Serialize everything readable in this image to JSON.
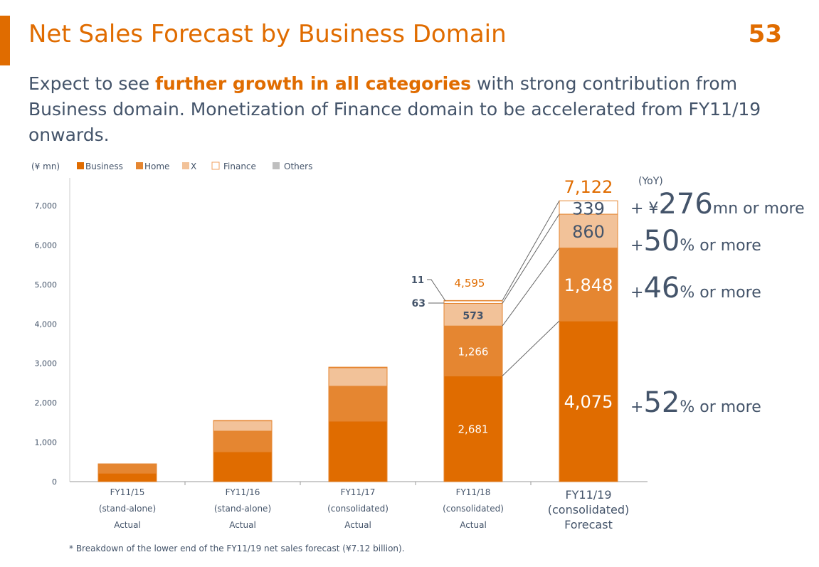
{
  "header": {
    "title": "Net Sales Forecast by Business Domain",
    "page_number": "53"
  },
  "subtitle": {
    "pre": "Expect to see ",
    "highlight": "further growth in all categories",
    "post": " with strong contribution from Business domain. Monetization of Finance domain to be accelerated from FY11/19 onwards."
  },
  "footnote": "* Breakdown of the lower end of the FY11/19 net sales forecast (¥7.12 billion).",
  "colors": {
    "Business": "#e06c00",
    "Home": "#e58631",
    "X": "#f2c299",
    "Finance": "#ffffff",
    "Others": "#bfbfbf",
    "accent": "#e06c00",
    "text": "#44546a"
  },
  "chart_data": {
    "type": "bar",
    "stacked": true,
    "unit_label": "(¥ mn)",
    "ylim": [
      0,
      7000
    ],
    "yticks": [
      "0",
      "1,000",
      "2,000",
      "3,000",
      "4,000",
      "5,000",
      "6,000",
      "7,000"
    ],
    "categories": [
      [
        "FY11/15",
        "(stand-alone)",
        "Actual"
      ],
      [
        "FY11/16",
        "(stand-alone)",
        "Actual"
      ],
      [
        "FY11/17",
        "(consolidated)",
        "Actual"
      ],
      [
        "FY11/18",
        "(consolidated)",
        "Actual"
      ],
      [
        "FY11/19",
        "(consolidated)",
        "Forecast"
      ]
    ],
    "series": [
      {
        "name": "Business",
        "values": [
          215,
          758,
          1534,
          2681,
          4075
        ]
      },
      {
        "name": "Home",
        "values": [
          236,
          523,
          885,
          1266,
          1848
        ]
      },
      {
        "name": "X",
        "values": [
          0,
          260,
          469,
          573,
          860
        ]
      },
      {
        "name": "Finance",
        "values": [
          0,
          10,
          15,
          63,
          339
        ]
      },
      {
        "name": "Others",
        "values": [
          0,
          0,
          0,
          11,
          0
        ]
      }
    ],
    "data_labels": {
      "FY11/18": {
        "total": "4,595",
        "Business": "2,681",
        "Home": "1,266",
        "X": "573",
        "Finance": "63",
        "Others": "11"
      },
      "FY11/19": {
        "total": "7,122",
        "Business": "4,075",
        "Home": "1,848",
        "X": "860",
        "Finance": "339"
      }
    },
    "yoy": {
      "label": "(YoY)",
      "items": [
        {
          "pre": "+ ¥",
          "big": "276",
          "post": "mn or more"
        },
        {
          "pre": "+",
          "big": "50",
          "post": "% or more"
        },
        {
          "pre": "+",
          "big": "46",
          "post": "% or more"
        },
        {
          "pre": "+",
          "big": "52",
          "post": "% or more"
        }
      ]
    }
  }
}
